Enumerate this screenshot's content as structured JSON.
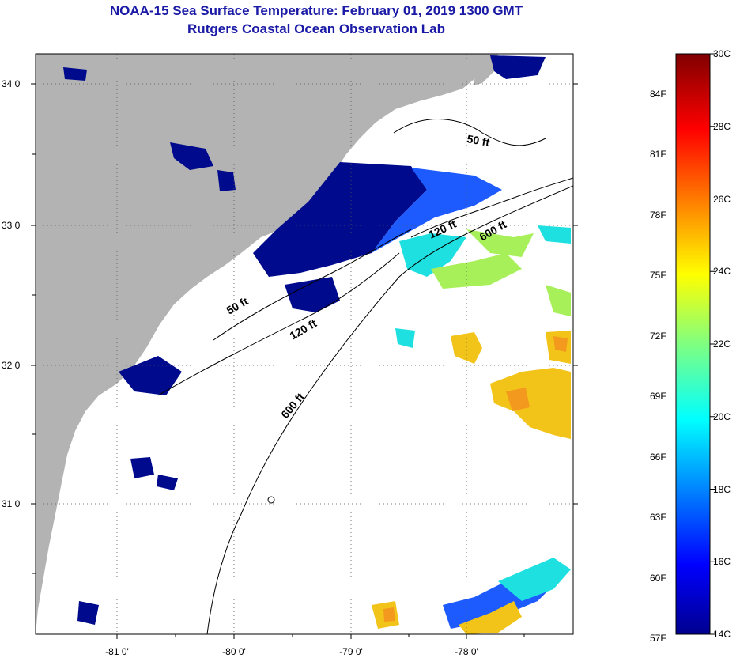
{
  "header": {
    "title": "NOAA-15 Sea Surface Temperature:  February 01, 2019 1300 GMT",
    "subtitle": "Rutgers Coastal Ocean Observation Lab"
  },
  "axes": {
    "lat_ticks": [
      {
        "label": "34 0'",
        "value": 34.0
      },
      {
        "label": "33 0'",
        "value": 33.0
      },
      {
        "label": "32 0'",
        "value": 32.0
      },
      {
        "label": "31 0'",
        "value": 31.0
      }
    ],
    "lon_ticks": [
      {
        "label": "-81 0'",
        "value": -81.0
      },
      {
        "label": "-80 0'",
        "value": -80.0
      },
      {
        "label": "-79 0'",
        "value": -79.0
      },
      {
        "label": "-78 0'",
        "value": -78.0
      }
    ]
  },
  "contours": {
    "labels": [
      "50 ft",
      "120 ft",
      "600 ft",
      "50 ft",
      "120 ft",
      "600 ft"
    ]
  },
  "colorbar": {
    "celsius": [
      "30C",
      "28C",
      "26C",
      "24C",
      "22C",
      "20C",
      "18C",
      "16C",
      "14C"
    ],
    "fahrenheit": [
      "84F",
      "81F",
      "78F",
      "75F",
      "72F",
      "69F",
      "66F",
      "63F",
      "60F",
      "57F"
    ]
  },
  "colors": {
    "land": "#b3b3b3",
    "sst_cold": "#000a8c",
    "sst_mid": "#1fe0e0",
    "sst_warm": "#f2c419"
  }
}
